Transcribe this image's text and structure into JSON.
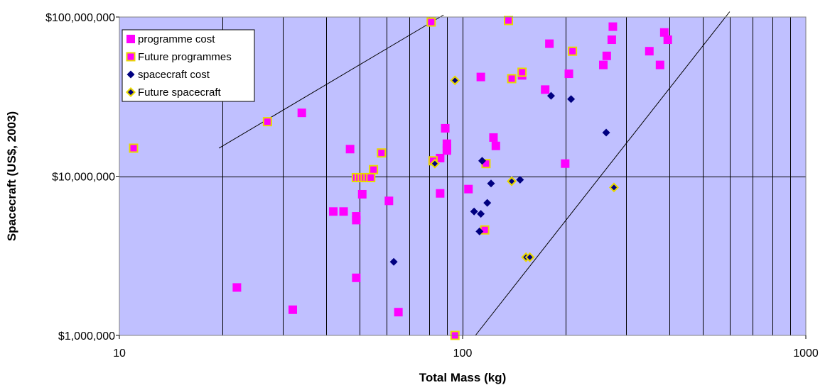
{
  "chart_data": {
    "type": "scatter",
    "title": "",
    "xlabel": "Total Mass (kg)",
    "ylabel": "Spacecraft (US$, 2003)",
    "x_scale": "log",
    "y_scale": "log",
    "xlim": [
      10,
      1000
    ],
    "ylim": [
      1000000,
      100000000
    ],
    "x_ticks": [
      {
        "value": 10,
        "label": "10"
      },
      {
        "value": 100,
        "label": "100"
      },
      {
        "value": 1000,
        "label": "1000"
      }
    ],
    "y_ticks": [
      {
        "value": 1000000,
        "label": "$1,000,000"
      },
      {
        "value": 10000000,
        "label": "$10,000,000"
      },
      {
        "value": 100000000,
        "label": "$100,000,000"
      }
    ],
    "grid": {
      "x_minor_log": true,
      "y_major": true
    },
    "background_color": "#c0c0ff",
    "legend_position": "top-left",
    "series": [
      {
        "name": "programme cost",
        "marker": "square",
        "color": "#ff00ff",
        "points": [
          [
            22,
            2000000
          ],
          [
            32,
            1450000
          ],
          [
            34,
            25000000
          ],
          [
            42,
            6000000
          ],
          [
            45,
            6000000
          ],
          [
            47,
            14800000
          ],
          [
            49,
            5600000
          ],
          [
            49,
            5300000
          ],
          [
            49,
            2300000
          ],
          [
            51,
            7700000
          ],
          [
            61,
            7000000
          ],
          [
            65,
            1400000
          ],
          [
            81,
            93000000
          ],
          [
            86,
            7800000
          ],
          [
            86,
            13000000
          ],
          [
            89,
            20000000
          ],
          [
            90,
            15000000
          ],
          [
            90,
            14500000
          ],
          [
            90,
            16000000
          ],
          [
            104,
            8300000
          ],
          [
            113,
            42000000
          ],
          [
            123,
            17500000
          ],
          [
            125,
            15500000
          ],
          [
            149,
            43000000
          ],
          [
            174,
            35000000
          ],
          [
            179,
            68000000
          ],
          [
            199,
            12000000
          ],
          [
            204,
            44000000
          ],
          [
            257,
            50000000
          ],
          [
            263,
            57000000
          ],
          [
            272,
            72000000
          ],
          [
            274,
            87000000
          ],
          [
            350,
            61000000
          ],
          [
            376,
            50000000
          ],
          [
            387,
            80000000
          ],
          [
            396,
            72000000
          ]
        ]
      },
      {
        "name": "Future programmes",
        "marker": "square-outlined",
        "color": "#ff00ff",
        "outline": "#e8d800",
        "points": [
          [
            11,
            15000000
          ],
          [
            27,
            22000000
          ],
          [
            49,
            9800000
          ],
          [
            50,
            9800000
          ],
          [
            51,
            9800000
          ],
          [
            52,
            9800000
          ],
          [
            53,
            9800000
          ],
          [
            54,
            9800000
          ],
          [
            55,
            11000000
          ],
          [
            58,
            14000000
          ],
          [
            81,
            93000000
          ],
          [
            82,
            12500000
          ],
          [
            95,
            1000000
          ],
          [
            116,
            4600000
          ],
          [
            117,
            12000000
          ],
          [
            136,
            95000000
          ],
          [
            139,
            41000000
          ],
          [
            149,
            45000000
          ],
          [
            209,
            61000000
          ]
        ]
      },
      {
        "name": "spacecraft cost",
        "marker": "diamond",
        "color": "#000080",
        "points": [
          [
            63,
            2900000
          ],
          [
            108,
            6000000
          ],
          [
            112,
            4500000
          ],
          [
            113,
            5800000
          ],
          [
            114,
            12500000
          ],
          [
            118,
            6800000
          ],
          [
            121,
            9000000
          ],
          [
            147,
            9500000
          ],
          [
            181,
            32000000
          ],
          [
            207,
            30500000
          ],
          [
            262,
            18800000
          ]
        ]
      },
      {
        "name": "Future spacecraft",
        "marker": "diamond-outlined",
        "color": "#000080",
        "outline": "#e8d800",
        "points": [
          [
            83,
            12000000
          ],
          [
            95,
            40000000
          ],
          [
            139,
            9300000
          ],
          [
            153,
            3100000
          ],
          [
            157,
            3100000
          ],
          [
            276,
            8500000
          ]
        ]
      }
    ],
    "lines": [
      {
        "from": [
          19.5,
          15000000
        ],
        "to": [
          88,
          103000000
        ]
      },
      {
        "from": [
          109,
          1000000
        ],
        "to": [
          600,
          108000000
        ]
      }
    ]
  }
}
